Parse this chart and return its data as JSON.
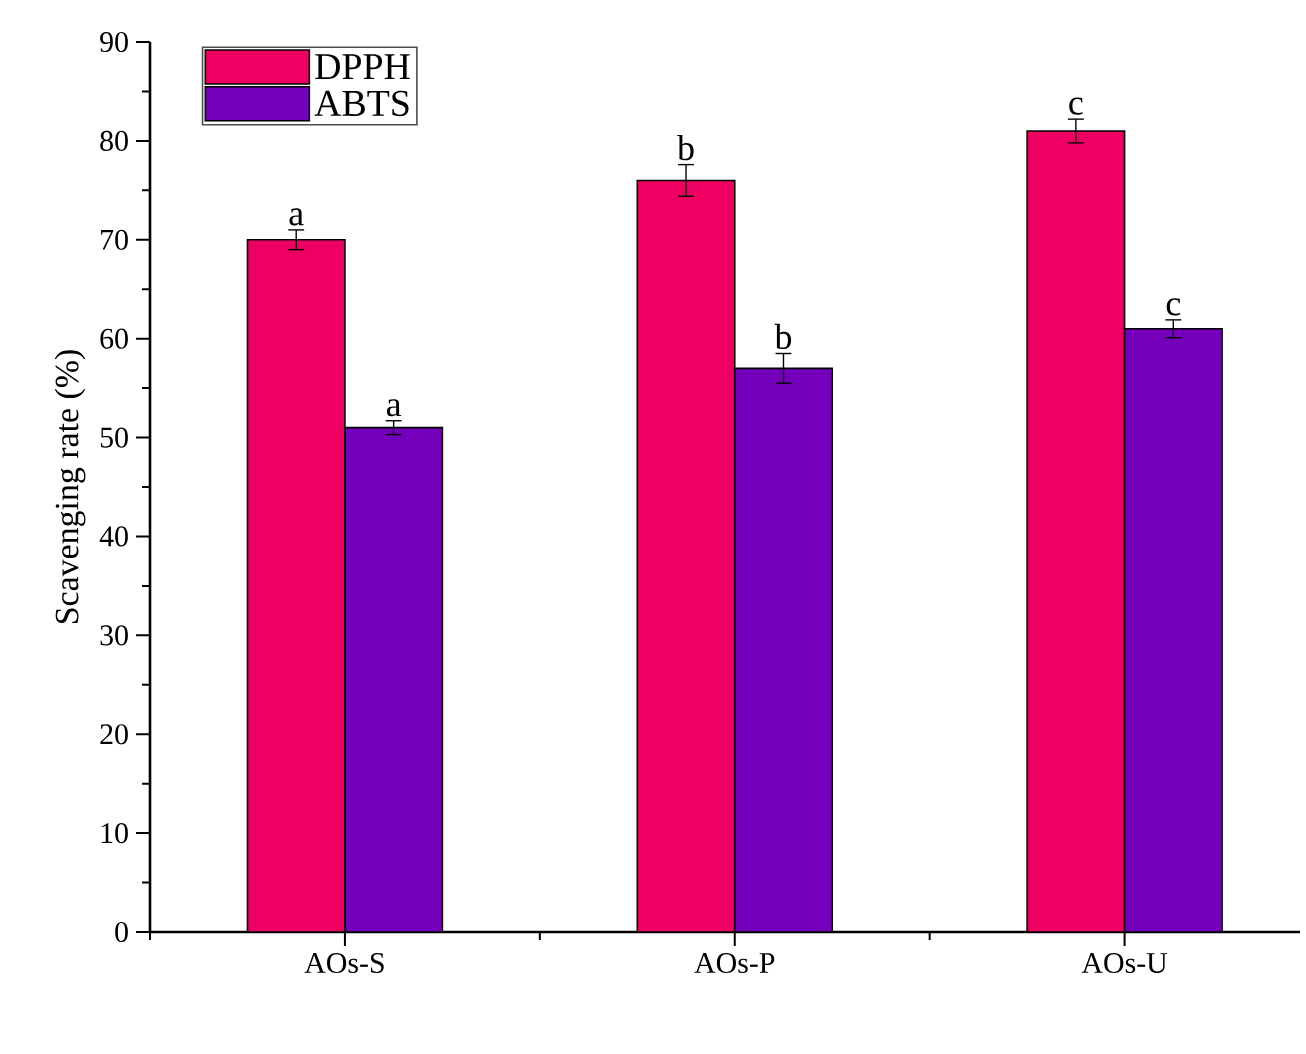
{
  "chart_data": {
    "type": "bar",
    "ylabel": "Scavenging rate (%)",
    "categories": [
      "AOs-S",
      "AOs-P",
      "AOs-U"
    ],
    "series": [
      {
        "name": "DPPH",
        "color": "#ee0063",
        "values": [
          70,
          76,
          81
        ],
        "errors": [
          1.0,
          1.6,
          1.2
        ]
      },
      {
        "name": "ABTS",
        "color": "#7400bb",
        "values": [
          51,
          57,
          61
        ],
        "errors": [
          0.7,
          1.5,
          0.9
        ]
      }
    ],
    "ylim": [
      0,
      90
    ],
    "yticks": [
      0,
      10,
      20,
      30,
      40,
      50,
      60,
      70,
      80,
      90
    ],
    "legend": "top left",
    "grid": false,
    "annotations": [
      "a",
      "a",
      "b",
      "b",
      "c",
      "c"
    ]
  }
}
